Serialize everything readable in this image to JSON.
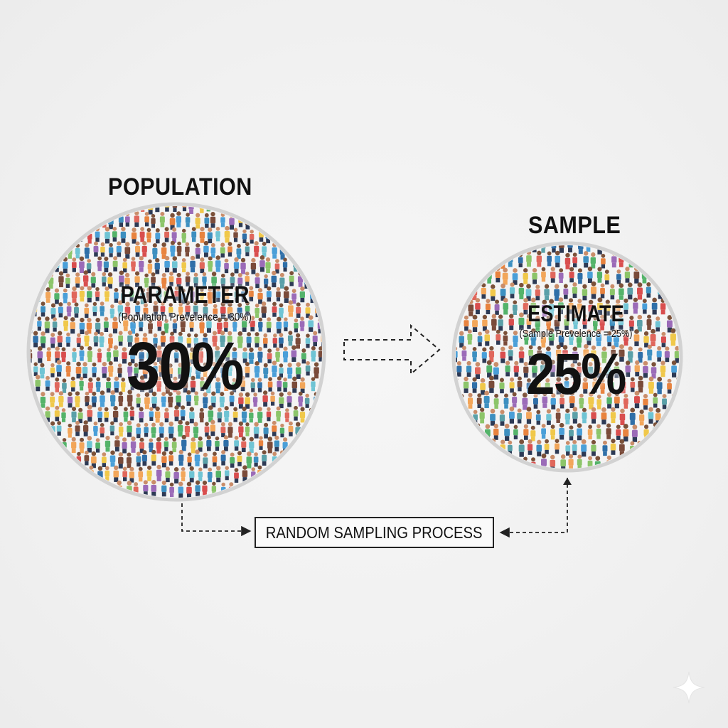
{
  "population": {
    "title": "POPULATION",
    "label": "PARAMETER",
    "sublabel": "(Population Prevelence = 30%)",
    "value_text": "30%",
    "prevalence": 0.3
  },
  "sample": {
    "title": "SAMPLE",
    "label": "ESTIMATE",
    "sublabel": "(Sample Prevelence = 25%)",
    "value_text": "25%",
    "prevalence": 0.25
  },
  "process": {
    "label": "RANDOM SAMPLING PROCESS"
  },
  "colors": {
    "people": [
      "#e0675c",
      "#4a9fd8",
      "#54b36a",
      "#f0c84a",
      "#3d8fc0",
      "#e8833f",
      "#9b6bb8",
      "#6fc4d4",
      "#d94e4e",
      "#2f6fa8",
      "#8cc56a",
      "#7a4b3a",
      "#f2a65a",
      "#5aa0a8"
    ],
    "circle_border": "#d0d0d0",
    "text": "#111111"
  }
}
